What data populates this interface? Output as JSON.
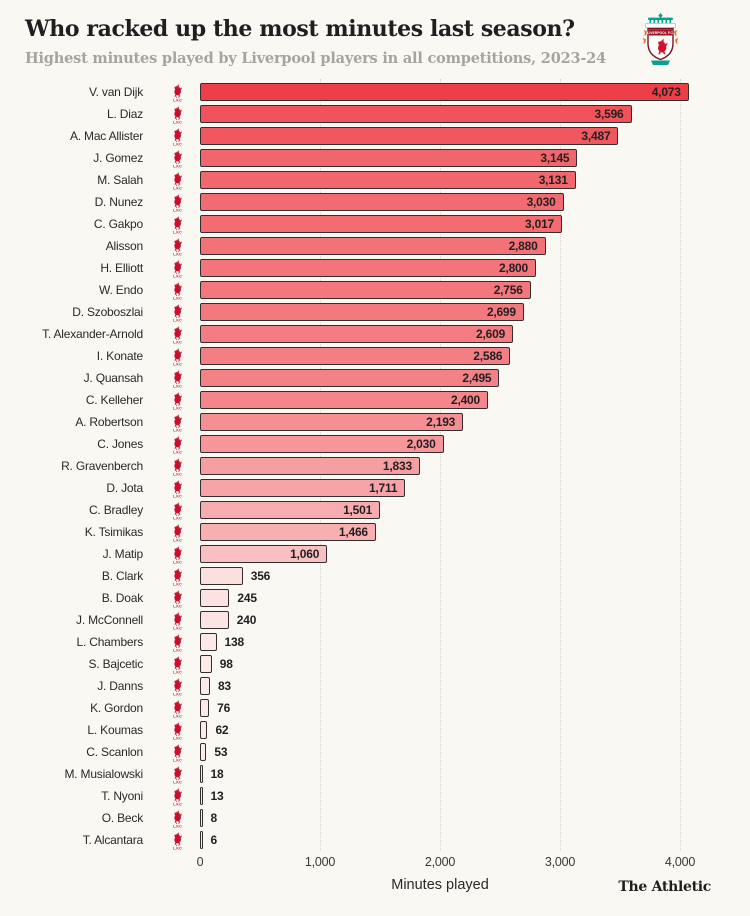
{
  "header": {
    "title": "Who racked up the most minutes last season?",
    "subtitle": "Highest minutes played by Liverpool players in all competitions, 2023-24"
  },
  "footer": {
    "brand": "The Athletic"
  },
  "icons": {
    "crest": "liverpool-crest",
    "row_badge": "liverbird-lfc-icon"
  },
  "colors": {
    "background": "#f9f8f3",
    "bar_scale_min": "#fceeeb",
    "bar_scale_max": "#ee3e48",
    "bar_border": "#332d2e",
    "liverbird_red": "#c8102e",
    "gridline": "#d5d2ca",
    "title": "#211e1f",
    "subtitle": "#a6a49f"
  },
  "chart_data": {
    "type": "bar",
    "orientation": "horizontal",
    "title": "Who racked up the most minutes last season?",
    "subtitle": "Highest minutes played by Liverpool players in all competitions, 2023-24",
    "xlabel": "Minutes played",
    "ylabel": "",
    "xlim": [
      0,
      4000
    ],
    "grid": "dotted-vertical",
    "x_ticks": [
      "0",
      "1,000",
      "2,000",
      "3,000",
      "4,000"
    ],
    "x_tick_values": [
      0,
      1000,
      2000,
      3000,
      4000
    ],
    "categories": [
      "V. van Dijk",
      "L. Diaz",
      "A. Mac Allister",
      "J. Gomez",
      "M. Salah",
      "D. Nunez",
      "C. Gakpo",
      "Alisson",
      "H. Elliott",
      "W. Endo",
      "D. Szoboszlai",
      "T. Alexander-Arnold",
      "I. Konate",
      "J. Quansah",
      "C. Kelleher",
      "A. Robertson",
      "C. Jones",
      "R. Gravenberch",
      "D. Jota",
      "C. Bradley",
      "K. Tsimikas",
      "J. Matip",
      "B. Clark",
      "B. Doak",
      "J. McConnell",
      "L. Chambers",
      "S. Bajcetic",
      "J. Danns",
      "K. Gordon",
      "L. Koumas",
      "C. Scanlon",
      "M. Musialowski",
      "T. Nyoni",
      "O. Beck",
      "T. Alcantara"
    ],
    "values": [
      4073,
      3596,
      3487,
      3145,
      3131,
      3030,
      3017,
      2880,
      2800,
      2756,
      2699,
      2609,
      2586,
      2495,
      2400,
      2193,
      2030,
      1833,
      1711,
      1501,
      1466,
      1060,
      356,
      245,
      240,
      138,
      98,
      83,
      76,
      62,
      53,
      18,
      13,
      8,
      6
    ],
    "value_labels": [
      "4,073",
      "3,596",
      "3,487",
      "3,145",
      "3,131",
      "3,030",
      "3,017",
      "2,880",
      "2,800",
      "2,756",
      "2,699",
      "2,609",
      "2,586",
      "2,495",
      "2,400",
      "2,193",
      "2,030",
      "1,833",
      "1,711",
      "1,501",
      "1,466",
      "1,060",
      "356",
      "245",
      "240",
      "138",
      "98",
      "83",
      "76",
      "62",
      "53",
      "18",
      "13",
      "8",
      "6"
    ]
  }
}
